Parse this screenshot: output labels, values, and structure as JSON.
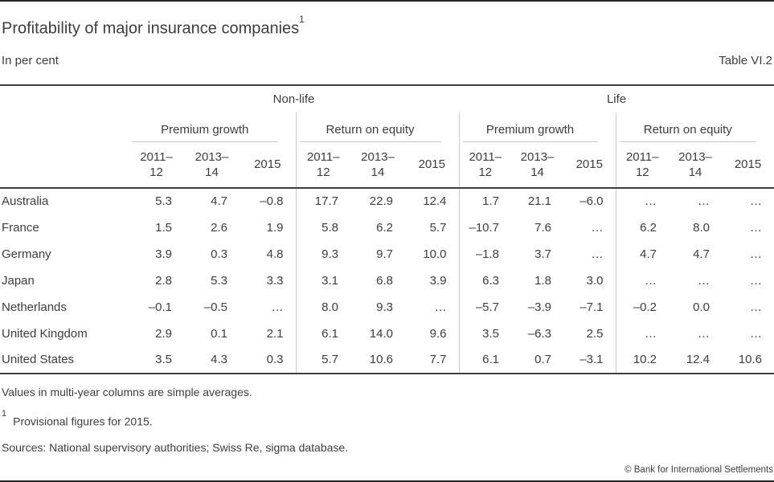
{
  "page": {
    "title": "Profitability of major insurance companies",
    "title_footnote_marker": "1",
    "unit_label": "In per cent",
    "table_ref": "Table VI.2"
  },
  "colors": {
    "text": "#3d3d3d",
    "rule_dark": "#3e3e3e",
    "rule_light": "#c8c8c8"
  },
  "table": {
    "category_groups": [
      "Non-life",
      "Life"
    ],
    "metric_groups": [
      "Premium growth",
      "Return on equity",
      "Premium growth",
      "Return on equity"
    ],
    "year_columns": [
      "2011–\n12",
      "2013–\n14",
      "2015"
    ],
    "rows": [
      {
        "country": "Australia",
        "values": [
          "5.3",
          "4.7",
          "–0.8",
          "17.7",
          "22.9",
          "12.4",
          "1.7",
          "21.1",
          "–6.0",
          "…",
          "…",
          "…"
        ]
      },
      {
        "country": "France",
        "values": [
          "1.5",
          "2.6",
          "1.9",
          "5.8",
          "6.2",
          "5.7",
          "–10.7",
          "7.6",
          "…",
          "6.2",
          "8.0",
          "…"
        ]
      },
      {
        "country": "Germany",
        "values": [
          "3.9",
          "0.3",
          "4.8",
          "9.3",
          "9.7",
          "10.0",
          "–1.8",
          "3.7",
          "…",
          "4.7",
          "4.7",
          "…"
        ]
      },
      {
        "country": "Japan",
        "values": [
          "2.8",
          "5.3",
          "3.3",
          "3.1",
          "6.8",
          "3.9",
          "6.3",
          "1.8",
          "3.0",
          "…",
          "…",
          "…"
        ]
      },
      {
        "country": "Netherlands",
        "values": [
          "–0.1",
          "–0.5",
          "…",
          "8.0",
          "9.3",
          "…",
          "–5.7",
          "–3.9",
          "–7.1",
          "–0.2",
          "0.0",
          "…"
        ]
      },
      {
        "country": "United Kingdom",
        "values": [
          "2.9",
          "0.1",
          "2.1",
          "6.1",
          "14.0",
          "9.6",
          "3.5",
          "–6.3",
          "2.5",
          "…",
          "…",
          "…"
        ]
      },
      {
        "country": "United States",
        "values": [
          "3.5",
          "4.3",
          "0.3",
          "5.7",
          "10.6",
          "7.7",
          "6.1",
          "0.7",
          "–3.1",
          "10.2",
          "12.4",
          "10.6"
        ]
      }
    ]
  },
  "notes": {
    "note_averages": "Values in multi-year columns are simple averages.",
    "footnote_marker": "1",
    "footnote_text": "Provisional figures for 2015.",
    "sources": "Sources: National supervisory authorities; Swiss Re, sigma database."
  },
  "footer": {
    "copyright": "© Bank for International Settlements"
  }
}
